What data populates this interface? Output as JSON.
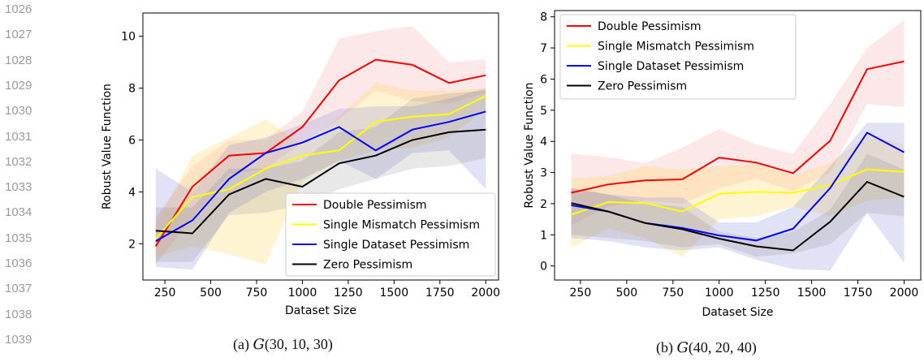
{
  "line_numbers": [
    "1026",
    "1027",
    "1028",
    "1029",
    "1030",
    "1031",
    "1032",
    "1033",
    "1034",
    "1035",
    "1036",
    "1037",
    "1038",
    "1039"
  ],
  "captions": [
    {
      "label": "(a)",
      "symbol": "G",
      "args": "(30, 10, 30)"
    },
    {
      "label": "(b)",
      "symbol": "G",
      "args": "(40, 20, 40)"
    }
  ],
  "chart_data": [
    {
      "type": "line",
      "xlabel": "Dataset Size",
      "ylabel": "Robust Value Function",
      "x": [
        200,
        400,
        600,
        800,
        1000,
        1200,
        1400,
        1600,
        1800,
        2000
      ],
      "xlim": [
        130,
        2070
      ],
      "ylim": [
        0.6,
        10.9
      ],
      "xticks": [
        250,
        500,
        750,
        1000,
        1250,
        1500,
        1750,
        2000
      ],
      "yticks": [
        2,
        4,
        6,
        8,
        10
      ],
      "grid": false,
      "legend_position": "lower-right",
      "series": [
        {
          "name": "Double Pessimism",
          "color": "#ff0000",
          "values": [
            1.9,
            4.2,
            5.4,
            5.5,
            6.5,
            8.3,
            9.1,
            8.9,
            8.2,
            8.5
          ],
          "upper": [
            3.0,
            5.0,
            6.0,
            6.0,
            7.1,
            9.9,
            10.2,
            10.4,
            9.0,
            9.1
          ],
          "lower": [
            1.2,
            3.0,
            4.7,
            4.9,
            5.9,
            6.8,
            7.9,
            7.5,
            7.4,
            7.8
          ]
        },
        {
          "name": "Single Mismatch Pessimism",
          "color": "#ffff00",
          "values": [
            2.2,
            3.8,
            4.1,
            4.9,
            5.4,
            5.6,
            6.7,
            6.9,
            7.0,
            7.7
          ],
          "upper": [
            2.7,
            5.4,
            6.1,
            6.8,
            5.8,
            6.9,
            8.2,
            7.9,
            7.9,
            8.0
          ],
          "lower": [
            1.5,
            1.9,
            1.6,
            1.2,
            4.4,
            5.2,
            5.6,
            5.7,
            6.1,
            7.2
          ]
        },
        {
          "name": "Single Dataset Pessimism",
          "color": "#0000ff",
          "values": [
            2.1,
            2.9,
            4.5,
            5.5,
            5.9,
            6.5,
            5.6,
            6.4,
            6.7,
            7.1
          ],
          "upper": [
            4.9,
            4.0,
            5.8,
            6.1,
            6.6,
            7.2,
            7.3,
            7.3,
            7.6,
            8.0
          ],
          "lower": [
            1.1,
            1.0,
            3.2,
            4.0,
            4.5,
            5.2,
            4.5,
            5.5,
            5.6,
            4.1
          ]
        },
        {
          "name": "Zero Pessimism",
          "color": "#000000",
          "values": [
            2.5,
            2.4,
            3.9,
            4.5,
            4.2,
            5.1,
            5.4,
            6.0,
            6.3,
            6.4
          ],
          "upper": [
            3.4,
            3.4,
            4.9,
            4.9,
            5.2,
            6.3,
            6.5,
            7.6,
            7.8,
            7.9
          ],
          "lower": [
            1.3,
            1.3,
            3.1,
            3.2,
            3.5,
            4.1,
            4.5,
            4.9,
            5.0,
            5.3
          ]
        }
      ]
    },
    {
      "type": "line",
      "xlabel": "Dataset Size",
      "ylabel": "Robust Value Function",
      "x": [
        200,
        400,
        600,
        800,
        1000,
        1200,
        1400,
        1600,
        1800,
        2000
      ],
      "xlim": [
        110,
        2090
      ],
      "ylim": [
        -0.45,
        8.2
      ],
      "xticks": [
        250,
        500,
        750,
        1000,
        1250,
        1500,
        1750,
        2000
      ],
      "yticks": [
        0,
        1,
        2,
        3,
        4,
        5,
        6,
        7,
        8
      ],
      "grid": false,
      "legend_position": "upper-left",
      "series": [
        {
          "name": "Double Pessimism",
          "color": "#ff0000",
          "values": [
            2.35,
            2.62,
            2.75,
            2.78,
            3.48,
            3.32,
            2.98,
            4.02,
            6.32,
            6.57
          ],
          "upper": [
            3.6,
            3.5,
            3.3,
            3.8,
            4.4,
            3.9,
            3.6,
            5.2,
            7.0,
            7.9
          ],
          "lower": [
            1.3,
            1.9,
            2.1,
            2.0,
            2.5,
            2.8,
            2.4,
            3.0,
            5.2,
            5.1
          ]
        },
        {
          "name": "Single Mismatch Pessimism",
          "color": "#ffff00",
          "values": [
            1.65,
            2.05,
            2.02,
            1.75,
            2.32,
            2.38,
            2.35,
            2.6,
            3.1,
            3.02
          ],
          "upper": [
            2.8,
            2.9,
            3.2,
            3.1,
            3.2,
            3.3,
            2.9,
            3.3,
            4.2,
            3.9
          ],
          "lower": [
            0.6,
            1.2,
            0.9,
            0.3,
            1.5,
            1.6,
            1.9,
            1.6,
            2.1,
            2.2
          ]
        },
        {
          "name": "Single Dataset Pessimism",
          "color": "#0000ff",
          "values": [
            1.95,
            1.75,
            1.38,
            1.22,
            0.98,
            0.82,
            1.2,
            2.5,
            4.28,
            3.65
          ],
          "upper": [
            2.5,
            2.3,
            2.2,
            2.2,
            1.4,
            1.4,
            1.9,
            3.2,
            4.6,
            4.6
          ],
          "lower": [
            0.9,
            0.8,
            0.6,
            0.5,
            0.6,
            0.2,
            -0.1,
            -0.15,
            1.7,
            0.1
          ]
        },
        {
          "name": "Zero Pessimism",
          "color": "#000000",
          "values": [
            2.02,
            1.75,
            1.38,
            1.18,
            0.88,
            0.63,
            0.5,
            1.42,
            2.7,
            2.22
          ],
          "upper": [
            2.5,
            2.3,
            2.0,
            1.9,
            1.1,
            0.9,
            1.1,
            1.8,
            3.6,
            3.1
          ],
          "lower": [
            1.0,
            0.9,
            0.8,
            0.6,
            0.7,
            0.3,
            0.4,
            0.7,
            1.7,
            1.6
          ]
        }
      ]
    }
  ]
}
